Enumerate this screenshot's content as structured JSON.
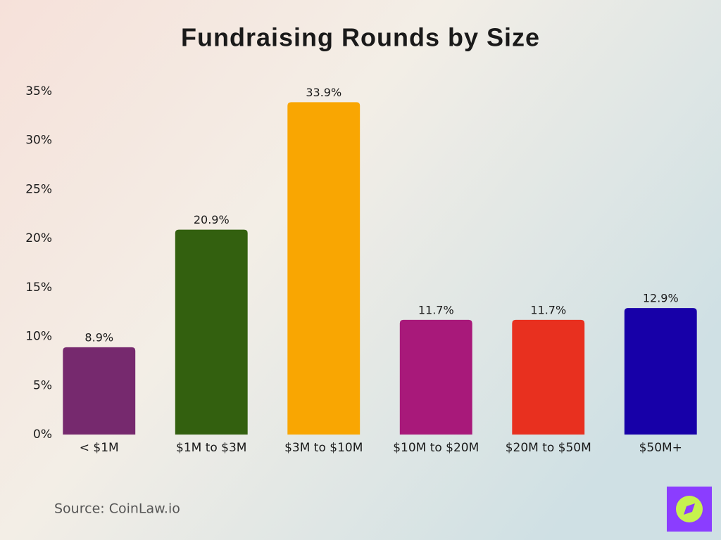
{
  "chart_data": {
    "type": "bar",
    "title": "Fundraising Rounds by Size",
    "categories": [
      "< $1M",
      "$1M to $3M",
      "$3M to $10M",
      "$10M to $20M",
      "$20M to $50M",
      "$50M+"
    ],
    "values": [
      8.9,
      20.9,
      33.9,
      11.7,
      11.7,
      12.9
    ],
    "value_labels": [
      "8.9%",
      "20.9%",
      "33.9%",
      "11.7%",
      "11.7%",
      "12.9%"
    ],
    "colors": [
      "#76296e",
      "#33600f",
      "#f9a602",
      "#a8197a",
      "#e8301f",
      "#1700a8"
    ],
    "ylim": [
      0,
      35
    ],
    "yticks": [
      {
        "value": 0,
        "label": "0%"
      },
      {
        "value": 5,
        "label": "5%"
      },
      {
        "value": 10,
        "label": "10%"
      },
      {
        "value": 15,
        "label": "15%"
      },
      {
        "value": 20,
        "label": "20%"
      },
      {
        "value": 25,
        "label": "25%"
      },
      {
        "value": 30,
        "label": "30%"
      },
      {
        "value": 35,
        "label": "35%"
      }
    ],
    "grid": false,
    "source": "Source: CoinLaw.io"
  }
}
